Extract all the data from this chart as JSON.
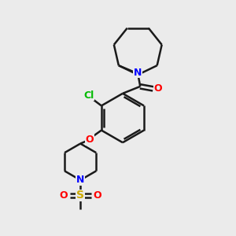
{
  "background_color": "#ebebeb",
  "bond_color": "#1a1a1a",
  "N_color": "#0000ff",
  "O_color": "#ff0000",
  "Cl_color": "#00bb00",
  "S_color": "#ccaa00",
  "line_width": 1.8,
  "figsize": [
    3.0,
    3.0
  ],
  "dpi": 100,
  "xlim": [
    0,
    10
  ],
  "ylim": [
    0,
    10
  ]
}
